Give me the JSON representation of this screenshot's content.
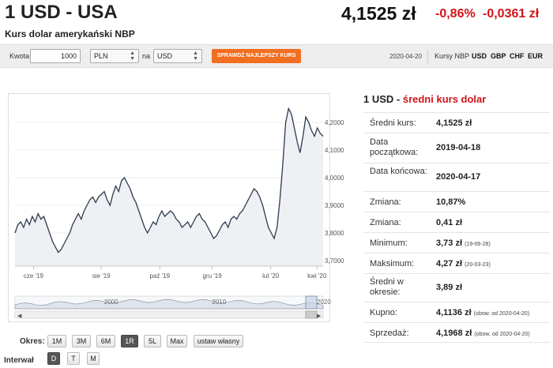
{
  "header": {
    "title": "1 USD - USA",
    "subtitle": "Kurs dolar amerykański NBP",
    "rate": "4,1525 zł",
    "change_pct": "-0,86%",
    "change_abs": "-0,0361 zł"
  },
  "toolbar": {
    "amount_label": "Kwota",
    "amount_value": "1000",
    "from_currency": "PLN",
    "to_label": "na",
    "to_currency": "USD",
    "best_rate_button": "SPRAWDŹ NAJLEPSZY KURS",
    "date": "2020-04-20",
    "rates_label": "Kursy NBP",
    "currencies": [
      "USD",
      "GBP",
      "CHF",
      "EUR"
    ]
  },
  "chart_data": {
    "type": "line",
    "title": "",
    "xlabel": "",
    "ylabel": "",
    "x_ticks": [
      "cze '19",
      "sie '19",
      "paź '19",
      "gru '19",
      "lut '20",
      "kwi '20"
    ],
    "y_ticks": [
      "3,7000",
      "3,8000",
      "3,9000",
      "4,0000",
      "4,1000",
      "4,2000"
    ],
    "ylim": [
      3.68,
      4.28
    ],
    "series": [
      {
        "name": "",
        "values": [
          3.8,
          3.83,
          3.84,
          3.82,
          3.85,
          3.83,
          3.86,
          3.84,
          3.87,
          3.85,
          3.86,
          3.83,
          3.8,
          3.77,
          3.75,
          3.73,
          3.74,
          3.76,
          3.78,
          3.8,
          3.83,
          3.85,
          3.87,
          3.85,
          3.88,
          3.9,
          3.92,
          3.93,
          3.91,
          3.93,
          3.94,
          3.95,
          3.92,
          3.9,
          3.94,
          3.97,
          3.95,
          3.99,
          4.0,
          3.98,
          3.96,
          3.93,
          3.91,
          3.88,
          3.85,
          3.82,
          3.8,
          3.82,
          3.84,
          3.83,
          3.86,
          3.88,
          3.86,
          3.87,
          3.88,
          3.87,
          3.85,
          3.84,
          3.82,
          3.83,
          3.84,
          3.82,
          3.84,
          3.86,
          3.87,
          3.85,
          3.84,
          3.82,
          3.8,
          3.78,
          3.79,
          3.81,
          3.83,
          3.84,
          3.82,
          3.85,
          3.86,
          3.85,
          3.87,
          3.88,
          3.9,
          3.92,
          3.94,
          3.96,
          3.95,
          3.93,
          3.9,
          3.86,
          3.82,
          3.8,
          3.78,
          3.82,
          3.92,
          4.05,
          4.2,
          4.25,
          4.23,
          4.18,
          4.13,
          4.09,
          4.15,
          4.22,
          4.2,
          4.17,
          4.15,
          4.18,
          4.16,
          4.15
        ]
      }
    ],
    "navigator": {
      "labels": [
        "2000",
        "2010",
        "2020"
      ]
    }
  },
  "periods": {
    "label": "Okres:",
    "buttons": [
      "1M",
      "3M",
      "6M",
      "1R",
      "5L",
      "Max",
      "ustaw własny"
    ],
    "active": "1R"
  },
  "interval": {
    "label": "Interwał",
    "buttons": [
      "D",
      "T",
      "M"
    ],
    "active": "D"
  },
  "info": {
    "title_prefix": "1 USD - ",
    "title_main": "średni kurs dolar",
    "rows": [
      {
        "label": "Średni kurs:",
        "value": "4,1525 zł",
        "note": ""
      },
      {
        "label": "Data początkowa:",
        "value": "2019-04-18",
        "note": ""
      },
      {
        "label": "Data końcowa:",
        "value": "2020-04-17",
        "note": ""
      },
      {
        "label": "Zmiana:",
        "value": "10,87%",
        "note": ""
      },
      {
        "label": "Zmiana:",
        "value": "0,41 zł",
        "note": ""
      },
      {
        "label": "Minimum:",
        "value": "3,73 zł",
        "note": "(19-06-28)"
      },
      {
        "label": "Maksimum:",
        "value": "4,27 zł",
        "note": "(20-03-23)"
      },
      {
        "label": "Średni w okresie:",
        "value": "3,89 zł",
        "note": ""
      },
      {
        "label": "Kupno:",
        "value": "4,1136 zł",
        "note": "(obow. od 2020-04-20)"
      },
      {
        "label": "Sprzedaż:",
        "value": "4,1968 zł",
        "note": "(obow. od 2020-04-20)"
      }
    ]
  },
  "colors": {
    "accent_red": "#d0141a",
    "button_orange": "#f26f21",
    "line": "#2d3a4d",
    "area_fill": "#eef0f3"
  }
}
